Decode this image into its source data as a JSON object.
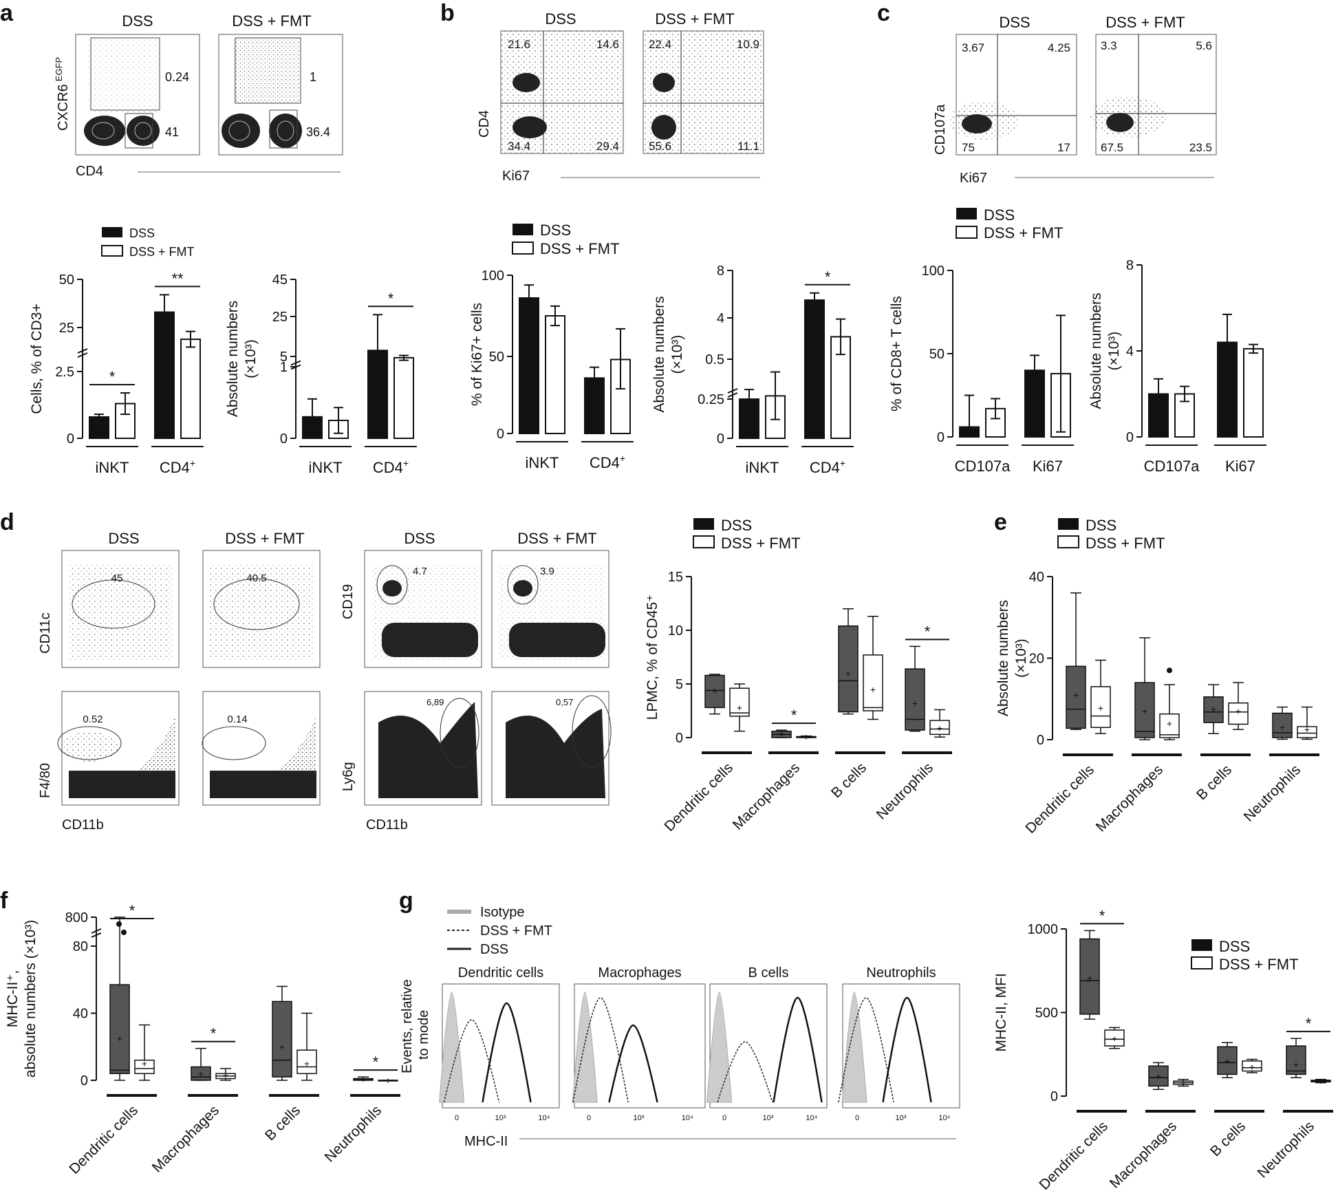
{
  "panel_letters": [
    "a",
    "b",
    "c",
    "d",
    "e",
    "f",
    "g"
  ],
  "legend": {
    "dss": "DSS",
    "fmt": "DSS + FMT",
    "isotype": "Isotype"
  },
  "flow": {
    "a": {
      "groups": [
        "DSS",
        "DSS + FMT"
      ],
      "x_label": "CD4",
      "y_label": "CXCR6",
      "y_sup": "EGFP",
      "upper": [
        "0.24",
        "1"
      ],
      "lower": [
        "41",
        "36.4"
      ]
    },
    "b": {
      "groups": [
        "DSS",
        "DSS + FMT"
      ],
      "x_label": "Ki67",
      "y_label": "CD4",
      "quadrants": [
        [
          "21.6",
          "14.6",
          "34.4",
          "29.4"
        ],
        [
          "22.4",
          "10.9",
          "55.6",
          "11.1"
        ]
      ]
    },
    "c": {
      "groups": [
        "DSS",
        "DSS + FMT"
      ],
      "x_label": "Ki67",
      "y_label": "CD107a",
      "quadrants": [
        [
          "3.67",
          "4.25",
          "75",
          "17"
        ],
        [
          "3.3",
          "5.6",
          "67.5",
          "23.5"
        ]
      ]
    },
    "d": {
      "groups": [
        "DSS",
        "DSS + FMT",
        "DSS",
        "DSS + FMT"
      ],
      "plots": [
        {
          "x": "",
          "y": "CD11c",
          "gate": "45"
        },
        {
          "x": "",
          "y": "",
          "gate": "40.5"
        },
        {
          "x": "CD11b",
          "y": "F4/80",
          "gate": "0.52"
        },
        {
          "x": "",
          "y": "",
          "gate": "0.14"
        },
        {
          "x": "",
          "y": "CD19",
          "gate": "4.7"
        },
        {
          "x": "",
          "y": "",
          "gate": "3.9"
        },
        {
          "x": "CD11b",
          "y": "Ly6g",
          "gate": "6,89"
        },
        {
          "x": "",
          "y": "",
          "gate": "0,57"
        }
      ]
    },
    "g": {
      "x_label": "MHC-II",
      "y_label_1": "Events, relative",
      "y_label_2": "to mode",
      "legend": [
        "Isotype",
        "DSS + FMT",
        "DSS"
      ],
      "cells": [
        "Dendritic cells",
        "Macrophages",
        "B cells",
        "Neutrophils"
      ]
    }
  },
  "chart_data": [
    {
      "id": "a-pct",
      "type": "bar",
      "categories": [
        "iNKT",
        "CD4+"
      ],
      "ylabel": "Cells, % of CD3+",
      "ylim": [
        0,
        50
      ],
      "y_break": true,
      "series": [
        {
          "name": "DSS",
          "values": [
            0.8,
            33
          ],
          "err": [
            0.1,
            9
          ]
        },
        {
          "name": "DSS + FMT",
          "values": [
            1.3,
            19
          ],
          "err": [
            0.4,
            4
          ]
        }
      ],
      "significance": [
        "*",
        "**"
      ]
    },
    {
      "id": "a-abs",
      "type": "bar",
      "categories": [
        "iNKT",
        "CD4+"
      ],
      "ylabel": "Absolute numbers (x10^3)",
      "ylim": [
        0,
        45
      ],
      "y_break": true,
      "series": [
        {
          "name": "DSS",
          "values": [
            0.3,
            8
          ],
          "err": [
            0.25,
            18
          ]
        },
        {
          "name": "DSS + FMT",
          "values": [
            0.25,
            4.5
          ],
          "err": [
            0.18,
            1
          ]
        }
      ],
      "significance": [
        "",
        "*"
      ]
    },
    {
      "id": "b-pct",
      "type": "bar",
      "categories": [
        "iNKT",
        "CD4+"
      ],
      "ylabel": "% of Ki67+ cells",
      "ylim": [
        0,
        100
      ],
      "series": [
        {
          "name": "DSS",
          "values": [
            86,
            36
          ],
          "err": [
            8,
            7
          ]
        },
        {
          "name": "DSS + FMT",
          "values": [
            75,
            48
          ],
          "err": [
            6,
            19
          ]
        }
      ],
      "significance": [
        "",
        ""
      ]
    },
    {
      "id": "b-abs",
      "type": "bar",
      "categories": [
        "iNKT",
        "CD4+"
      ],
      "ylabel": "Absolute numbers (x10^3)",
      "ylim": [
        0,
        8
      ],
      "y_break": true,
      "series": [
        {
          "name": "DSS",
          "values": [
            0.25,
            5.5
          ],
          "err": [
            0.06,
            0.6
          ]
        },
        {
          "name": "DSS + FMT",
          "values": [
            0.27,
            2.4
          ],
          "err": [
            0.15,
            1.5
          ]
        }
      ],
      "significance": [
        "",
        "*"
      ]
    },
    {
      "id": "c-pct",
      "type": "bar",
      "categories": [
        "CD107a",
        "Ki67"
      ],
      "ylabel": "% of CD8+ T cells",
      "ylim": [
        0,
        100
      ],
      "series": [
        {
          "name": "DSS",
          "values": [
            6,
            40
          ],
          "err": [
            19,
            9
          ]
        },
        {
          "name": "DSS + FMT",
          "values": [
            17,
            38
          ],
          "err": [
            6,
            35
          ]
        }
      ],
      "significance": [
        "",
        ""
      ]
    },
    {
      "id": "c-abs",
      "type": "bar",
      "categories": [
        "CD107a",
        "Ki67"
      ],
      "ylabel": "Absolute numbers (x10^3)",
      "ylim": [
        0,
        8
      ],
      "series": [
        {
          "name": "DSS",
          "values": [
            2,
            4.4
          ],
          "err": [
            0.7,
            1.3
          ]
        },
        {
          "name": "DSS + FMT",
          "values": [
            2,
            4.1
          ],
          "err": [
            0.35,
            0.2
          ]
        }
      ],
      "significance": [
        "",
        ""
      ]
    },
    {
      "id": "d-box",
      "type": "box",
      "categories": [
        "Dendritic cells",
        "Macrophages",
        "B cells",
        "Neutrophils"
      ],
      "ylabel": "LPMC, % of CD45+",
      "ylim": [
        0,
        15
      ],
      "series": [
        {
          "name": "DSS",
          "boxes": [
            [
              2.2,
              2.8,
              4.4,
              5.8,
              5.9,
              4.4
            ],
            [
              0,
              0,
              0.3,
              0.6,
              0.7,
              0.4
            ],
            [
              2.2,
              2.4,
              5.3,
              10.4,
              12,
              6
            ],
            [
              0.6,
              0.7,
              1.7,
              6.4,
              8.5,
              3.2
            ]
          ]
        },
        {
          "name": "DSS + FMT",
          "boxes": [
            [
              0.6,
              2.0,
              2.3,
              4.6,
              5,
              2.8
            ],
            [
              0,
              0,
              0.05,
              0.1,
              0.15,
              0.05
            ],
            [
              1.7,
              2.5,
              2.8,
              7.7,
              11.3,
              4.5
            ],
            [
              0.05,
              0.3,
              0.8,
              1.6,
              2.6,
              0.9
            ]
          ]
        }
      ],
      "significance": [
        "",
        "*",
        "",
        "*"
      ]
    },
    {
      "id": "e-box",
      "type": "box",
      "categories": [
        "Dendritic cells",
        "Macrophages",
        "B cells",
        "Neutrophils"
      ],
      "ylabel": "Absolute numbers (x10^3)",
      "ylim": [
        0,
        40
      ],
      "series": [
        {
          "name": "DSS",
          "boxes": [
            [
              2.5,
              2.8,
              7.5,
              18,
              36,
              11
            ],
            [
              0,
              0.5,
              2,
              14,
              25,
              7
            ],
            [
              1.5,
              4.2,
              6.8,
              10.5,
              13.5,
              7.5
            ],
            [
              0.1,
              0.5,
              1.7,
              6.5,
              8,
              3
            ]
          ]
        },
        {
          "name": "DSS + FMT",
          "boxes": [
            [
              1.5,
              3,
              5.8,
              13,
              19.5,
              7.8
            ],
            [
              0,
              0.5,
              1.2,
              6.3,
              13.5,
              4
            ],
            [
              2.5,
              3.8,
              6.8,
              9,
              14,
              7
            ],
            [
              0.1,
              0.5,
              1.6,
              3.2,
              8,
              2.5
            ]
          ]
        }
      ],
      "outliers": {
        "DSS + FMT": [
          [
            1,
            17
          ]
        ]
      },
      "significance": [
        "",
        "",
        "",
        ""
      ]
    },
    {
      "id": "f-box",
      "type": "box",
      "categories": [
        "Dendritic cells",
        "Macrophages",
        "B cells",
        "Neutrophils"
      ],
      "ylabel": "MHC-II+, absolute numbers (x10^3)",
      "ylim": [
        0,
        800
      ],
      "y_break": true,
      "series": [
        {
          "name": "DSS",
          "boxes": [
            [
              0,
              4,
              6,
              57,
              800,
              25
            ],
            [
              0,
              0,
              2,
              8,
              19,
              4
            ],
            [
              0,
              2,
              12,
              47,
              56,
              20
            ],
            [
              0,
              0,
              0.3,
              1,
              2,
              0.6
            ]
          ]
        },
        {
          "name": "DSS + FMT",
          "boxes": [
            [
              0,
              4,
              7,
              12,
              33,
              10
            ],
            [
              0,
              1,
              2.5,
              4,
              7,
              3
            ],
            [
              0,
              4,
              8,
              18,
              40,
              10
            ],
            [
              0,
              0,
              0,
              0,
              0,
              0
            ]
          ]
        }
      ],
      "significance": [
        "*",
        "*",
        "",
        "*"
      ]
    },
    {
      "id": "g-box",
      "type": "box",
      "categories": [
        "Dendritic cells",
        "Macrophages",
        "B cells",
        "Neutrophils"
      ],
      "ylabel": "MHC-II, MFI",
      "ylim": [
        0,
        1000
      ],
      "series": [
        {
          "name": "DSS",
          "boxes": [
            [
              460,
              490,
              690,
              940,
              990,
              705
            ],
            [
              40,
              60,
              110,
              180,
              200,
              120
            ],
            [
              110,
              130,
              200,
              295,
              320,
              210
            ],
            [
              110,
              130,
              150,
              300,
              345,
              190
            ]
          ]
        },
        {
          "name": "DSS + FMT",
          "boxes": [
            [
              285,
              300,
              340,
              395,
              410,
              345
            ],
            [
              60,
              70,
              80,
              90,
              100,
              80
            ],
            [
              140,
              150,
              170,
              210,
              220,
              175
            ],
            [
              80,
              85,
              90,
              95,
              100,
              90
            ]
          ]
        }
      ],
      "significance": [
        "*",
        "",
        "",
        "*"
      ]
    }
  ]
}
